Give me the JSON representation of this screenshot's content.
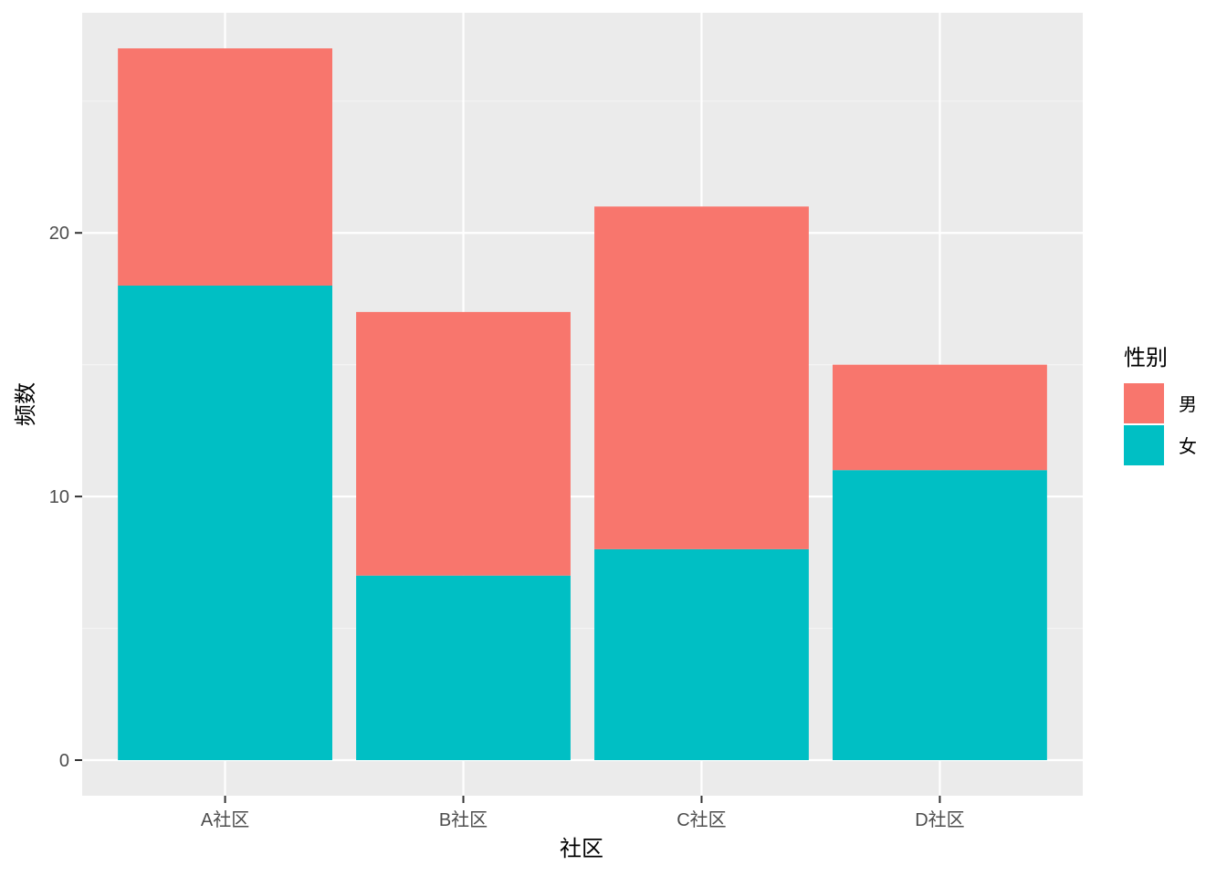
{
  "chart_data": {
    "type": "bar",
    "stacked": true,
    "categories": [
      "A社区",
      "B社区",
      "C社区",
      "D社区"
    ],
    "series": [
      {
        "name": "女",
        "values": [
          18,
          7,
          8,
          11
        ],
        "color": "#00BFC4"
      },
      {
        "name": "男",
        "values": [
          9,
          10,
          13,
          4
        ],
        "color": "#F8766D"
      }
    ],
    "title": "",
    "xlabel": "社区",
    "ylabel": "频数",
    "ylim": [
      -1.35,
      28.35
    ],
    "yticks": [
      0,
      10,
      20
    ],
    "y_minor_ticks": [
      5,
      15,
      25
    ],
    "grid": true,
    "legend": {
      "title": "性别",
      "position": "right",
      "entries": [
        {
          "label": "男",
          "color": "#F8766D"
        },
        {
          "label": "女",
          "color": "#00BFC4"
        }
      ]
    },
    "colors": {
      "panel_background": "#EBEBEB",
      "grid_major": "#FFFFFF",
      "grid_minor": "#F5F5F5",
      "tick_text": "#4D4D4D",
      "tick_mark": "#333333"
    }
  }
}
